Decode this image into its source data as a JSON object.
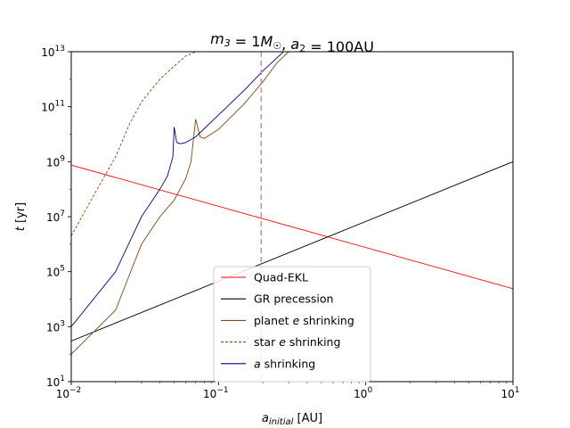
{
  "chart_data": {
    "type": "line",
    "title": "m₃ = 1M☉, a₂ = 100AU",
    "xlabel": "a_initial [AU]",
    "ylabel": "t [yr]",
    "xscale": "log",
    "yscale": "log",
    "xlim": [
      0.01,
      10
    ],
    "ylim": [
      10,
      10000000000000.0
    ],
    "xticks": [
      {
        "value": 0.01,
        "base": "10",
        "exp": "−2"
      },
      {
        "value": 0.1,
        "base": "10",
        "exp": "−1"
      },
      {
        "value": 1,
        "base": "10",
        "exp": "0"
      },
      {
        "value": 10,
        "base": "10",
        "exp": "1"
      }
    ],
    "yticks": [
      {
        "value": 10,
        "base": "10",
        "exp": "1"
      },
      {
        "value": 1000,
        "base": "10",
        "exp": "3"
      },
      {
        "value": 100000,
        "base": "10",
        "exp": "5"
      },
      {
        "value": 10000000,
        "base": "10",
        "exp": "7"
      },
      {
        "value": 1000000000,
        "base": "10",
        "exp": "9"
      },
      {
        "value": 100000000000,
        "base": "10",
        "exp": "11"
      },
      {
        "value": 10000000000000,
        "base": "10",
        "exp": "13"
      }
    ],
    "grid": false,
    "legend_position": "bottom-center",
    "vertical_line": {
      "x": 0.195,
      "color": "#e377c2",
      "style": "dashed"
    },
    "series": [
      {
        "name": "Quad-EKL",
        "color": "#ff0000",
        "dash": "solid",
        "x": [
          0.01,
          10
        ],
        "y": [
          750000000.0,
          24000.0
        ]
      },
      {
        "name": "GR precession",
        "color": "#000000",
        "dash": "solid",
        "x": [
          0.01,
          10
        ],
        "y": [
          300,
          1000000000.0
        ]
      },
      {
        "name": "planet e shrinking",
        "color": "#8b4513",
        "dash": "solid",
        "x": [
          0.01,
          0.02,
          0.03,
          0.04,
          0.05,
          0.06,
          0.065,
          0.07,
          0.075,
          0.08,
          0.1,
          0.15,
          0.2,
          0.25,
          0.3
        ],
        "y": [
          100,
          4000,
          1000000.0,
          10000000.0,
          40000000.0,
          250000000.0,
          1000000000.0,
          35000000000.0,
          8000000000.0,
          7000000000.0,
          15000000000.0,
          130000000000.0,
          800000000000.0,
          4000000000000.0,
          10000000000000.0
        ]
      },
      {
        "name": "star e shrinking",
        "color": "#8b4513",
        "dash": "dashed",
        "x": [
          0.01,
          0.015,
          0.02,
          0.025,
          0.03,
          0.04,
          0.05,
          0.06,
          0.07
        ],
        "y": [
          2000000.0,
          100000000.0,
          1500000000.0,
          25000000000.0,
          150000000000.0,
          1000000000000.0,
          3000000000000.0,
          7000000000000.0,
          10000000000000.0
        ]
      },
      {
        "name": "a shrinking",
        "color": "#00008b",
        "dash": "solid",
        "x": [
          0.01,
          0.02,
          0.03,
          0.04,
          0.045,
          0.049,
          0.05,
          0.052,
          0.055,
          0.06,
          0.07,
          0.1,
          0.15,
          0.2,
          0.3
        ],
        "y": [
          1000,
          100000.0,
          10000000.0,
          100000000.0,
          300000000.0,
          1500000000.0,
          18000000000.0,
          5000000000.0,
          4500000000.0,
          5000000000.0,
          8000000000.0,
          50000000000.0,
          400000000000.0,
          2000000000000.0,
          15000000000000.0
        ]
      }
    ]
  }
}
